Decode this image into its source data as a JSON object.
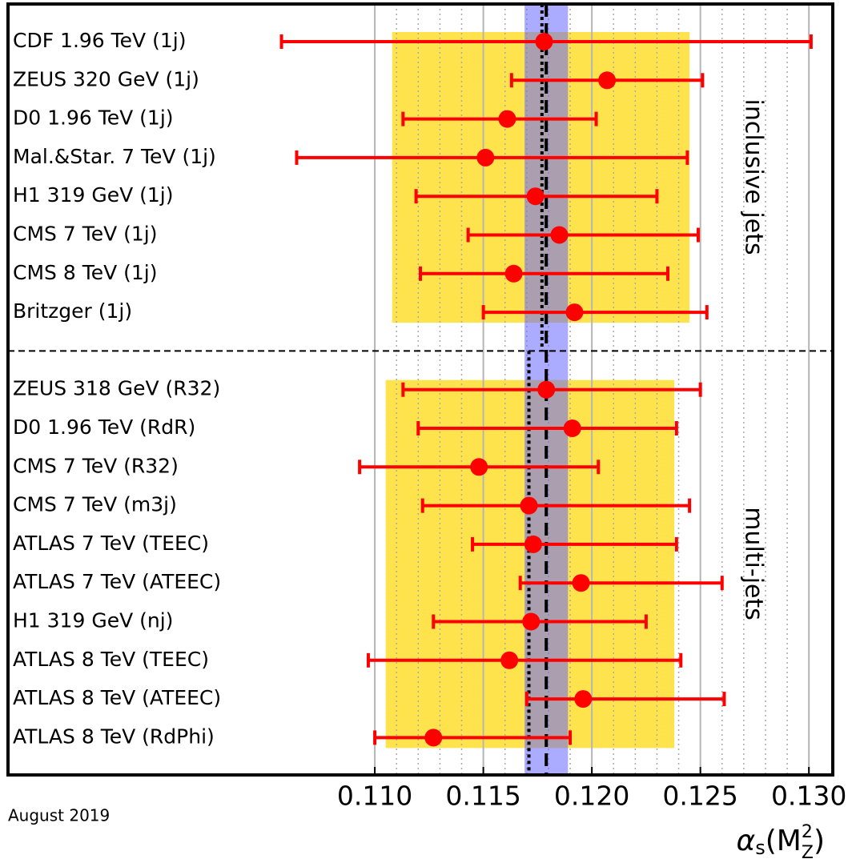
{
  "chart_data": {
    "type": "errorbar",
    "xlim": [
      0.0931,
      0.1311
    ],
    "xticks": [
      {
        "value": 0.11,
        "label": "0.110"
      },
      0.115,
      {
        "value": 0.12,
        "label": "0.120"
      },
      0.125,
      {
        "value": 0.13,
        "label": "0.130"
      }
    ],
    "minor_xticks": [
      0.111,
      0.112,
      0.113,
      0.114,
      0.116,
      0.117,
      0.118,
      0.119,
      0.121,
      0.122,
      0.123,
      0.124,
      0.126,
      0.127,
      0.128,
      0.129
    ],
    "grid": true,
    "color": "#ff0000",
    "band_color": "#ffd700",
    "world_average": {
      "value": 0.1179,
      "error": 0.001,
      "color": "#6666ff"
    },
    "x_label": [
      "α",
      "s",
      "(M",
      "2",
      "Z",
      ")"
    ],
    "note": "August 2019",
    "groups": [
      {
        "label": "inclusive jets",
        "average": 0.1177,
        "band": [
          0.1108,
          0.1245
        ],
        "categories": [
          "CDF 1.96 TeV (1j)",
          "ZEUS 320 GeV (1j)",
          "D0 1.96 TeV (1j)",
          "Mal.&Star. 7 TeV (1j)",
          "H1 319 GeV (1j)",
          "CMS 7 TeV (1j)",
          "CMS 8 TeV (1j)",
          "Britzger (1j)"
        ],
        "values": [
          0.1178,
          0.1207,
          0.1161,
          0.1151,
          0.1174,
          0.1185,
          0.1164,
          0.1192
        ],
        "err_minus": [
          0.0121,
          0.0044,
          0.0048,
          0.0087,
          0.0055,
          0.0042,
          0.0043,
          0.0042
        ],
        "err_plus": [
          0.0123,
          0.0044,
          0.0041,
          0.0093,
          0.0056,
          0.0064,
          0.0071,
          0.0061
        ]
      },
      {
        "label": "multi-jets",
        "average": 0.1171,
        "band": [
          0.1105,
          0.1238
        ],
        "categories": [
          "ZEUS 318 GeV (R32)",
          "D0 1.96 TeV (RdR)",
          "CMS 7 TeV (R32)",
          "CMS 7 TeV (m3j)",
          "ATLAS 7 TeV (TEEC)",
          "ATLAS 7 TeV (ATEEC)",
          "H1 319 GeV (nj)",
          "ATLAS 8 TeV (TEEC)",
          "ATLAS 8 TeV (ATEEC)",
          "ATLAS 8 TeV (RdPhi)"
        ],
        "values": [
          0.1179,
          0.1191,
          0.1148,
          0.1171,
          0.1173,
          0.1195,
          0.1172,
          0.1162,
          0.1196,
          0.1127
        ],
        "err_minus": [
          0.0066,
          0.0071,
          0.0055,
          0.0049,
          0.0028,
          0.0028,
          0.0045,
          0.0065,
          0.0026,
          0.0027
        ],
        "err_plus": [
          0.0071,
          0.0048,
          0.0055,
          0.0074,
          0.0066,
          0.0065,
          0.0053,
          0.0079,
          0.0065,
          0.0063
        ]
      }
    ]
  }
}
